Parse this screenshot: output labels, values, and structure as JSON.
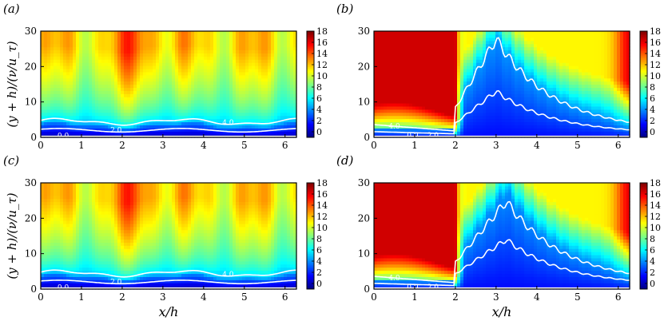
{
  "chart_data": [
    {
      "panel": "a",
      "panel_label": "(a)",
      "type": "heatmap",
      "regime": "smooth-like",
      "xlim": [
        0,
        6.28
      ],
      "ylim": [
        0,
        30
      ],
      "xticks": [
        "0",
        "1",
        "2",
        "3",
        "4",
        "5",
        "6"
      ],
      "yticks": [
        "0",
        "10",
        "20",
        "30"
      ],
      "xlabel": "",
      "ylabel": "(y + h)/(ν/u_τ)",
      "contour_labels": [
        "0.0",
        "2.0",
        "4.0"
      ],
      "contour_levels": [
        0,
        2,
        4
      ]
    },
    {
      "panel": "b",
      "panel_label": "(b)",
      "type": "heatmap",
      "regime": "bump",
      "peak_x": 3.0,
      "xlim": [
        0,
        6.28
      ],
      "ylim": [
        0,
        30
      ],
      "xticks": [
        "0",
        "1",
        "2",
        "3",
        "4",
        "5",
        "6"
      ],
      "yticks": [
        "0",
        "10",
        "20",
        "30"
      ],
      "xlabel": "",
      "ylabel": "",
      "contour_labels": [
        "4.0",
        "0.0",
        "2.0"
      ],
      "contour_levels": [
        0,
        2,
        4
      ],
      "contour_peaks": [
        12,
        28
      ]
    },
    {
      "panel": "c",
      "panel_label": "(c)",
      "type": "heatmap",
      "regime": "smooth-like",
      "xlim": [
        0,
        6.28
      ],
      "ylim": [
        0,
        30
      ],
      "xticks": [
        "0",
        "1",
        "2",
        "3",
        "4",
        "5",
        "6"
      ],
      "yticks": [
        "0",
        "10",
        "20",
        "30"
      ],
      "xlabel": "x/h",
      "ylabel": "(y + h)/(ν/u_τ)",
      "contour_labels": [
        "0.0",
        "2.0",
        "4.0"
      ],
      "contour_levels": [
        0,
        2,
        4
      ]
    },
    {
      "panel": "d",
      "panel_label": "(d)",
      "type": "heatmap",
      "regime": "bump",
      "peak_x": 3.25,
      "xlim": [
        0,
        6.28
      ],
      "ylim": [
        0,
        30
      ],
      "xticks": [
        "0",
        "1",
        "2",
        "3",
        "4",
        "5",
        "6"
      ],
      "yticks": [
        "0",
        "10",
        "20",
        "30"
      ],
      "xlabel": "x/h",
      "ylabel": "",
      "contour_labels": [
        "4.0",
        "0.0",
        "2.0"
      ],
      "contour_levels": [
        0,
        2,
        4
      ],
      "contour_peaks": [
        13,
        25
      ]
    }
  ],
  "colorbar": {
    "ticks": [
      "18",
      "16",
      "14",
      "12",
      "10",
      "8",
      "6",
      "4",
      "2",
      "0"
    ],
    "range": [
      -1,
      18
    ],
    "colormap": [
      "#00007f",
      "#0000ff",
      "#007fff",
      "#00ffff",
      "#7fff7f",
      "#ffff00",
      "#ff7f00",
      "#ff0000",
      "#7f0000"
    ]
  },
  "colors": {
    "contour": "#ffffff",
    "frame": "#000000"
  }
}
